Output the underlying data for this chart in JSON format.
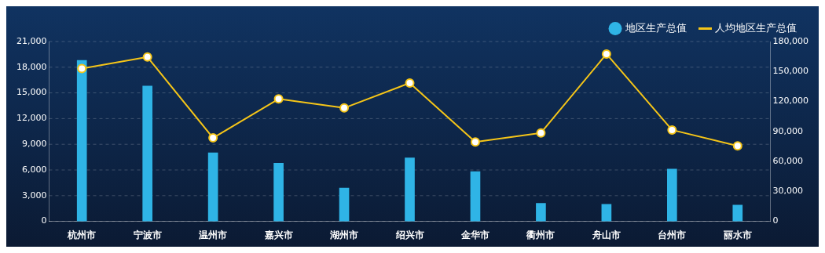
{
  "chart_data": {
    "type": "bar",
    "categories": [
      "杭州市",
      "宁波市",
      "温州市",
      "嘉兴市",
      "湖州市",
      "绍兴市",
      "金华市",
      "衢州市",
      "舟山市",
      "台州市",
      "丽水市"
    ],
    "series": [
      {
        "name": "地区生产总值",
        "color": "#2fb4e6",
        "values": [
          18800,
          15800,
          8000,
          6800,
          3900,
          7400,
          5800,
          2100,
          2000,
          6100,
          1900
        ]
      },
      {
        "name": "人均地区生产总值",
        "type": "line",
        "axis": "y2",
        "color": "#f5c518",
        "values": [
          153000,
          164500,
          83500,
          122500,
          113500,
          138500,
          79500,
          88500,
          167500,
          91500,
          75500
        ]
      }
    ],
    "ylim": [
      0,
      21000
    ],
    "yticks": [
      {
        "value": 0,
        "label": "0"
      },
      {
        "value": 3000,
        "label": "3,000"
      },
      {
        "value": 6000,
        "label": "6,000"
      },
      {
        "value": 9000,
        "label": "9,000"
      },
      {
        "value": 12000,
        "label": "12,000"
      },
      {
        "value": 15000,
        "label": "15,000"
      },
      {
        "value": 18000,
        "label": "18,000"
      },
      {
        "value": 21000,
        "label": "21,000"
      }
    ],
    "y2lim": [
      0,
      180000
    ],
    "y2ticks": [
      {
        "value": 0,
        "label": "0"
      },
      {
        "value": 30000,
        "label": "30,000"
      },
      {
        "value": 60000,
        "label": "60,000"
      },
      {
        "value": 90000,
        "label": "90,000"
      },
      {
        "value": 120000,
        "label": "120,000"
      },
      {
        "value": 150000,
        "label": "150,000"
      },
      {
        "value": 180000,
        "label": "180,000"
      }
    ],
    "grid": "y",
    "legend": "top right",
    "marker": "circle"
  }
}
